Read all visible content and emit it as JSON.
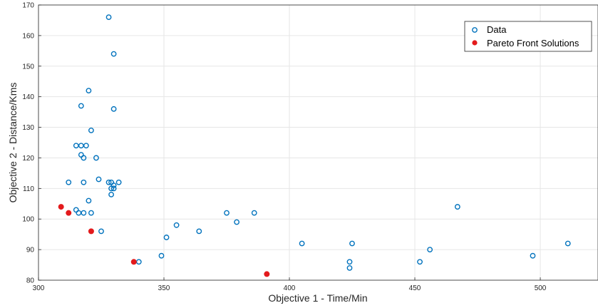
{
  "chart_data": {
    "type": "scatter",
    "xlabel": "Objective 1 - Time/Min",
    "ylabel": "Objective 2 - Distance/Kms",
    "xlim": [
      300,
      523
    ],
    "ylim": [
      80,
      170
    ],
    "xticks": [
      300,
      350,
      400,
      450,
      500
    ],
    "yticks": [
      80,
      90,
      100,
      110,
      120,
      130,
      140,
      150,
      160,
      170
    ],
    "grid": true,
    "legend_position": "top-right",
    "series": [
      {
        "name": "Data",
        "marker": "open-circle",
        "color": "#0072BD",
        "points": [
          [
            328,
            166
          ],
          [
            330,
            154
          ],
          [
            320,
            142
          ],
          [
            317,
            137
          ],
          [
            330,
            136
          ],
          [
            321,
            129
          ],
          [
            315,
            124
          ],
          [
            317,
            124
          ],
          [
            319,
            124
          ],
          [
            317,
            121
          ],
          [
            318,
            120
          ],
          [
            323,
            120
          ],
          [
            324,
            113
          ],
          [
            312,
            112
          ],
          [
            318,
            112
          ],
          [
            328,
            112
          ],
          [
            329,
            112
          ],
          [
            332,
            112
          ],
          [
            330,
            111
          ],
          [
            329,
            110
          ],
          [
            330,
            110
          ],
          [
            329,
            108
          ],
          [
            320,
            106
          ],
          [
            315,
            103
          ],
          [
            316,
            102
          ],
          [
            318,
            102
          ],
          [
            321,
            102
          ],
          [
            325,
            96
          ],
          [
            340,
            86
          ],
          [
            349,
            88
          ],
          [
            351,
            94
          ],
          [
            355,
            98
          ],
          [
            364,
            96
          ],
          [
            375,
            102
          ],
          [
            379,
            99
          ],
          [
            386,
            102
          ],
          [
            405,
            92
          ],
          [
            424,
            86
          ],
          [
            424,
            84
          ],
          [
            425,
            92
          ],
          [
            452,
            86
          ],
          [
            456,
            90
          ],
          [
            467,
            104
          ],
          [
            497,
            88
          ],
          [
            511,
            92
          ]
        ]
      },
      {
        "name": "Pareto Front Solutions",
        "marker": "filled-circle",
        "color": "#E31A1C",
        "points": [
          [
            309,
            104
          ],
          [
            312,
            102
          ],
          [
            321,
            96
          ],
          [
            338,
            86
          ],
          [
            391,
            82
          ]
        ]
      }
    ]
  }
}
